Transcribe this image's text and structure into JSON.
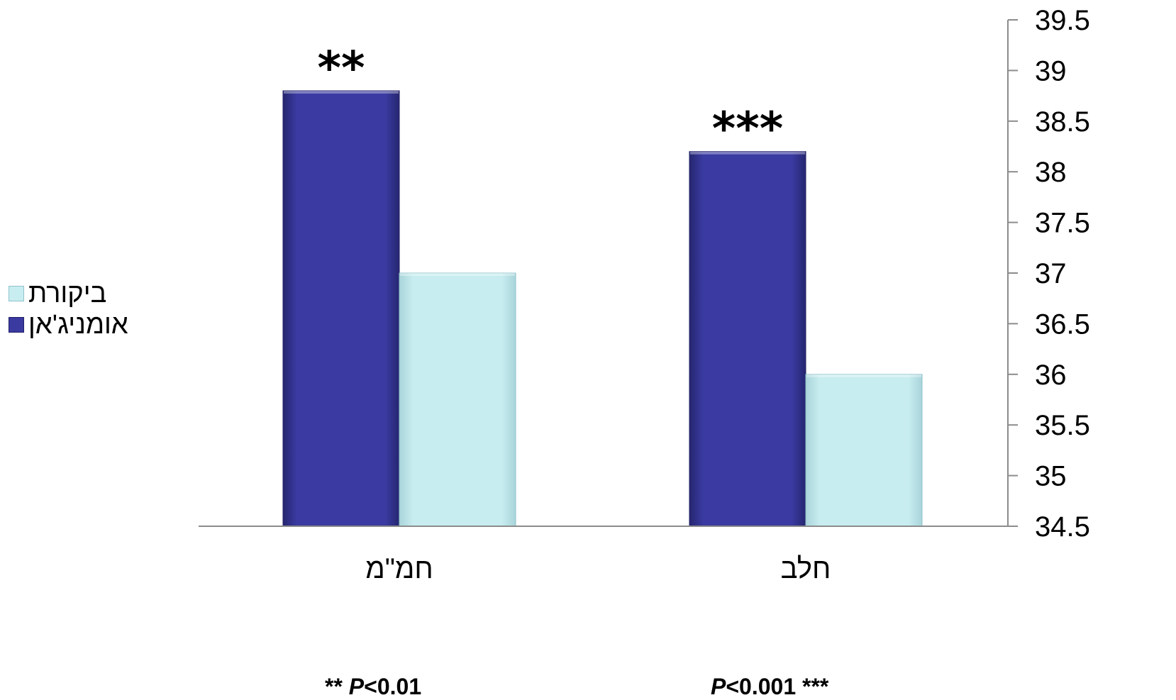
{
  "chart_data": {
    "type": "bar",
    "categories": [
      "חמ\"מ",
      "חלב"
    ],
    "series": [
      {
        "name": "אומניג'אן",
        "values": [
          38.8,
          38.2
        ],
        "color": "#3a3aa0"
      },
      {
        "name": "ביקורת",
        "values": [
          37.0,
          36.0
        ],
        "color": "#c8edf0"
      }
    ],
    "significance": [
      "**",
      "***"
    ],
    "ylim": [
      34.5,
      39.5
    ],
    "yticks": [
      "34.5",
      "35",
      "35.5",
      "36",
      "36.5",
      "37",
      "37.5",
      "38",
      "38.5",
      "39",
      "39.5"
    ],
    "y_axis_side": "right",
    "grid": false,
    "legend_position": "left"
  },
  "notes": {
    "left": {
      "stars": "**",
      "p": "P",
      "rest": "<0.01"
    },
    "right": {
      "p": "P",
      "rest": "<0.001",
      "stars": "***"
    }
  }
}
